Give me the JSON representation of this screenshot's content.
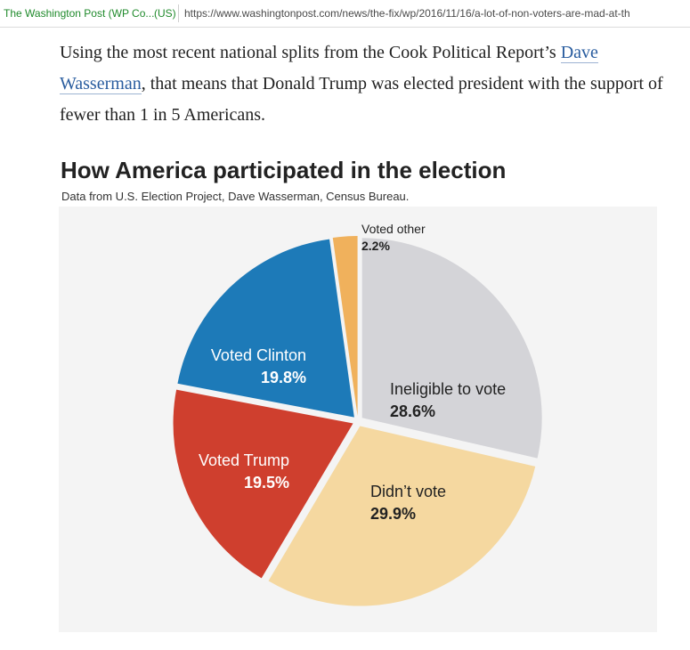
{
  "browser": {
    "site_name": "The Washington Post (WP Co...",
    "country": "(US)",
    "url": "https://www.washingtonpost.com/news/the-fix/wp/2016/11/16/a-lot-of-non-voters-are-mad-at-th"
  },
  "article": {
    "text_before": "Using the most recent national splits from the Cook Political Report’s ",
    "link_text": "Dave Wasserman",
    "text_after": ", that means that Donald Trump was elected president with the support of fewer than 1 in 5 Americans."
  },
  "chart_data": {
    "type": "pie",
    "title": "How America participated in the election",
    "subtitle": "Data from U.S. Election Project, Dave Wasserman, Census Bureau.",
    "slices": [
      {
        "label": "Ineligible to vote",
        "value": 28.6,
        "value_label": "28.6%",
        "color": "#d4d4d8",
        "text_color": "#222222"
      },
      {
        "label": "Didn’t vote",
        "value": 29.9,
        "value_label": "29.9%",
        "color": "#f5d8a0",
        "text_color": "#222222"
      },
      {
        "label": "Voted Trump",
        "value": 19.5,
        "value_label": "19.5%",
        "color": "#cf3f2e",
        "text_color": "#ffffff"
      },
      {
        "label": "Voted Clinton",
        "value": 19.8,
        "value_label": "19.8%",
        "color": "#1d7ab8",
        "text_color": "#ffffff"
      },
      {
        "label": "Voted other",
        "value": 2.2,
        "value_label": "2.2%",
        "color": "#f0b15c",
        "text_color": "#222222"
      }
    ]
  }
}
